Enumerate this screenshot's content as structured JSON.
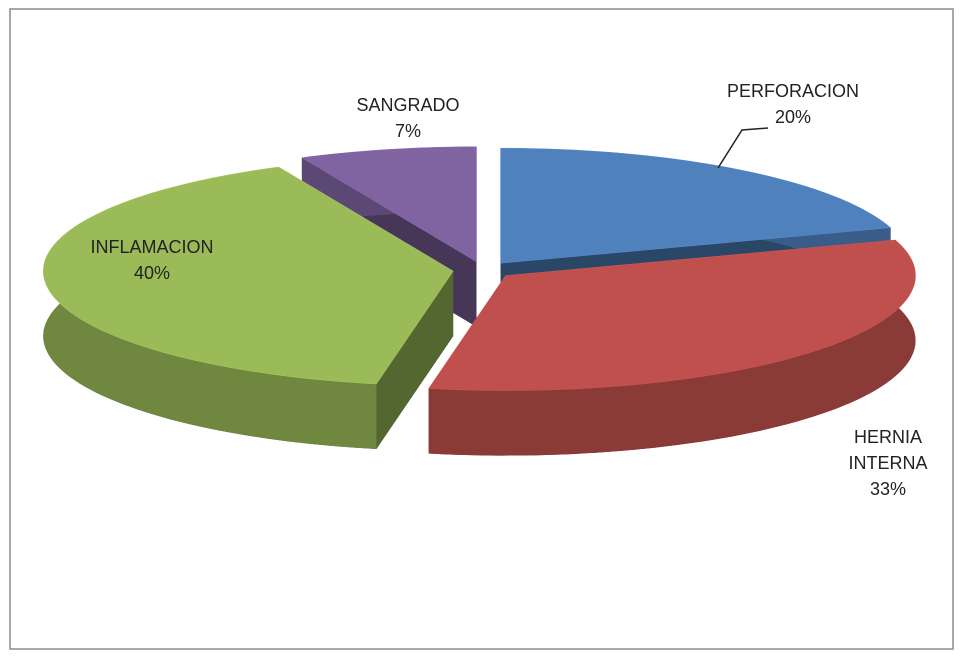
{
  "chart_data": {
    "type": "pie3d",
    "categories": [
      "PERFORACION",
      "HERNIA INTERNA",
      "INFLAMACION",
      "SANGRADO"
    ],
    "values": [
      20,
      33,
      40,
      7
    ],
    "value_labels": [
      "20%",
      "33%",
      "40%",
      "7%"
    ],
    "colors": [
      "#4f81bd",
      "#c0504d",
      "#9bbb59",
      "#8064a2"
    ]
  }
}
